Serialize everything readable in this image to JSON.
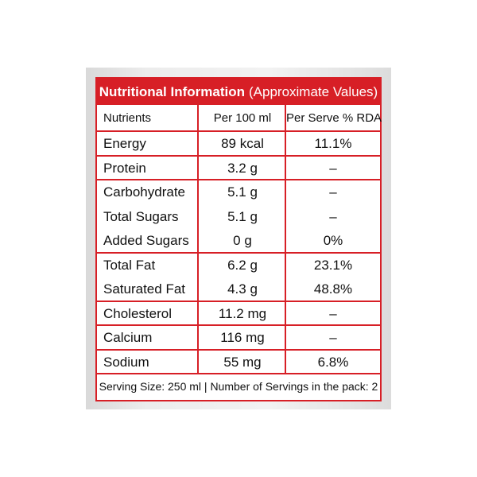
{
  "header": {
    "title": "Nutritional Information",
    "subtitle": "(Approximate Values)"
  },
  "table": {
    "columns": [
      "Nutrients",
      "Per 100 ml",
      "Per Serve % RDA"
    ],
    "groups": [
      [
        [
          "Energy",
          "89 kcal",
          "11.1%"
        ]
      ],
      [
        [
          "Protein",
          "3.2 g",
          "–"
        ]
      ],
      [
        [
          "Carbohydrate",
          "5.1 g",
          "–"
        ],
        [
          "Total Sugars",
          "5.1 g",
          "–"
        ],
        [
          "Added Sugars",
          "0 g",
          "0%"
        ]
      ],
      [
        [
          "Total Fat",
          "6.2 g",
          "23.1%"
        ],
        [
          "Saturated Fat",
          "4.3 g",
          "48.8%"
        ]
      ],
      [
        [
          "Cholesterol",
          "11.2 mg",
          "–"
        ]
      ],
      [
        [
          "Calcium",
          "116 mg",
          "–"
        ]
      ],
      [
        [
          "Sodium",
          "55 mg",
          "6.8%"
        ]
      ]
    ]
  },
  "footer": "Serving Size: 250 ml | Number of Servings in the pack: 2"
}
